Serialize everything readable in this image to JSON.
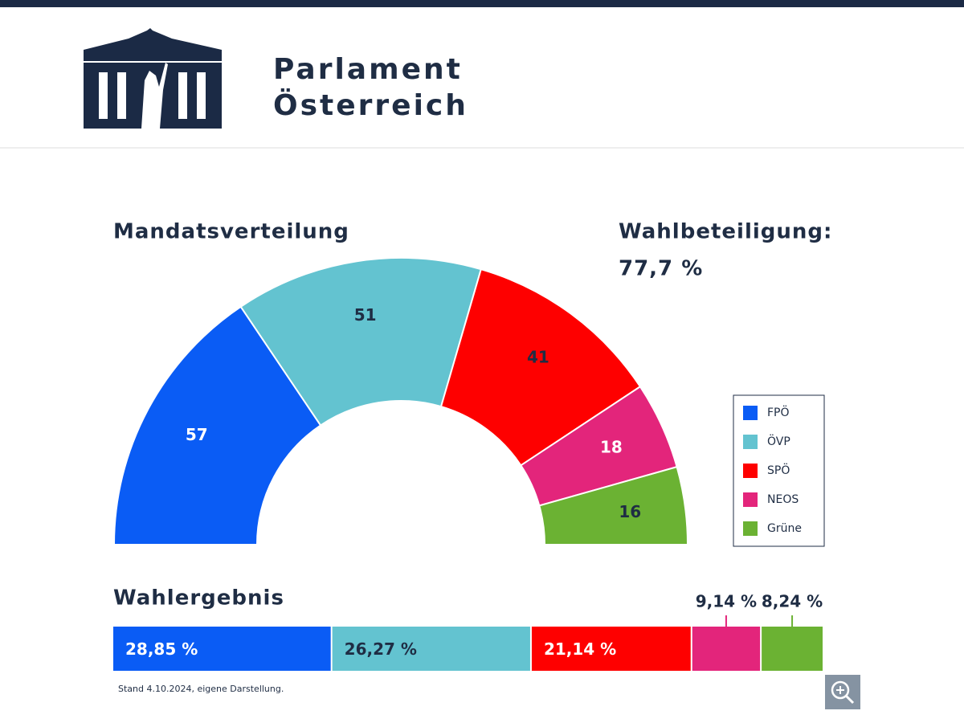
{
  "header": {
    "title_line1": "Parlament",
    "title_line2": "Österreich"
  },
  "chart_data": [
    {
      "type": "parliament",
      "title": "Mandatsverteilung",
      "categories": [
        "FPÖ",
        "ÖVP",
        "SPÖ",
        "NEOS",
        "Grüne"
      ],
      "values": [
        57,
        51,
        41,
        18,
        16
      ],
      "colors": [
        "#0a5cf5",
        "#63c3d0",
        "#fe0000",
        "#e3257b",
        "#6bb233"
      ],
      "turnout_title": "Wahlbeteiligung:",
      "turnout": "77,7 %"
    },
    {
      "type": "stacked-bar",
      "title": "Wahlergebnis",
      "values": [
        28.85,
        26.27,
        21.14,
        9.14,
        8.24
      ],
      "value_labels": [
        "28,85 %",
        "26,27 %",
        "21,14 %",
        "9,14 %",
        "8,24 %"
      ],
      "colors": [
        "#0a5cf5",
        "#63c3d0",
        "#fe0000",
        "#e3257b",
        "#6bb233"
      ]
    }
  ],
  "footnote": "Stand 4.10.2024, eigene Darstellung."
}
